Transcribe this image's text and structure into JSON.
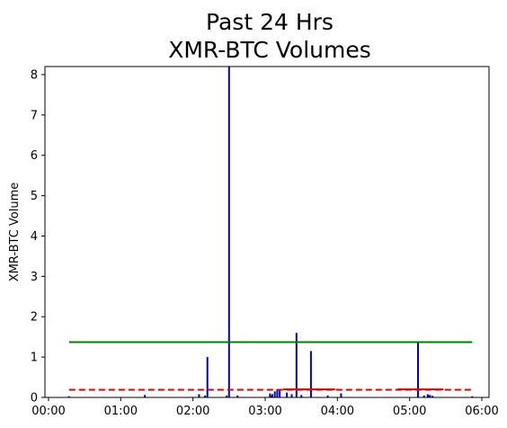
{
  "chart_data": {
    "type": "bar",
    "title_line1": "Past 24 Hrs",
    "title_line2": "XMR-BTC Volumes",
    "xlabel": "",
    "ylabel": "XMR-BTC Volume",
    "xlim": [
      "00:00",
      "06:00"
    ],
    "ylim": [
      0,
      8.2
    ],
    "x_ticks": [
      "00:00",
      "01:00",
      "02:00",
      "03:00",
      "04:00",
      "05:00",
      "06:00"
    ],
    "y_ticks": [
      "0",
      "1",
      "2",
      "3",
      "4",
      "5",
      "6",
      "7",
      "8"
    ],
    "bar_color": "#0000cc",
    "bars": [
      {
        "time": "00:17",
        "value": 0.03
      },
      {
        "time": "01:20",
        "value": 0.06
      },
      {
        "time": "02:05",
        "value": 0.08
      },
      {
        "time": "02:10",
        "value": 0.05
      },
      {
        "time": "02:12",
        "value": 1.0
      },
      {
        "time": "02:28",
        "value": 0.05
      },
      {
        "time": "02:30",
        "value": 8.2
      },
      {
        "time": "02:37",
        "value": 0.05
      },
      {
        "time": "03:04",
        "value": 0.1
      },
      {
        "time": "03:05",
        "value": 0.05
      },
      {
        "time": "03:06",
        "value": 0.08
      },
      {
        "time": "03:08",
        "value": 0.15
      },
      {
        "time": "03:10",
        "value": 0.2
      },
      {
        "time": "03:12",
        "value": 0.18
      },
      {
        "time": "03:18",
        "value": 0.12
      },
      {
        "time": "03:22",
        "value": 0.08
      },
      {
        "time": "03:26",
        "value": 1.6
      },
      {
        "time": "03:30",
        "value": 0.06
      },
      {
        "time": "03:38",
        "value": 1.15
      },
      {
        "time": "03:52",
        "value": 0.05
      },
      {
        "time": "04:03",
        "value": 0.1
      },
      {
        "time": "05:07",
        "value": 1.35
      },
      {
        "time": "05:12",
        "value": 0.05
      },
      {
        "time": "05:15",
        "value": 0.08
      },
      {
        "time": "05:16",
        "value": 0.05
      },
      {
        "time": "05:17",
        "value": 0.06
      },
      {
        "time": "05:19",
        "value": 0.04
      },
      {
        "time": "05:52",
        "value": 0.03
      }
    ],
    "reference_lines": [
      {
        "value": 1.37,
        "start": "00:17",
        "end": "05:52",
        "color": "#008000",
        "style": "solid"
      },
      {
        "value": 0.19,
        "start": "00:17",
        "end": "05:52",
        "color": "#dd0000",
        "style": "dashed"
      }
    ],
    "red_solid_segments": [
      {
        "start": "03:15",
        "end": "03:58",
        "value": 0.2
      },
      {
        "start": "04:50",
        "end": "05:28",
        "value": 0.2
      }
    ]
  }
}
